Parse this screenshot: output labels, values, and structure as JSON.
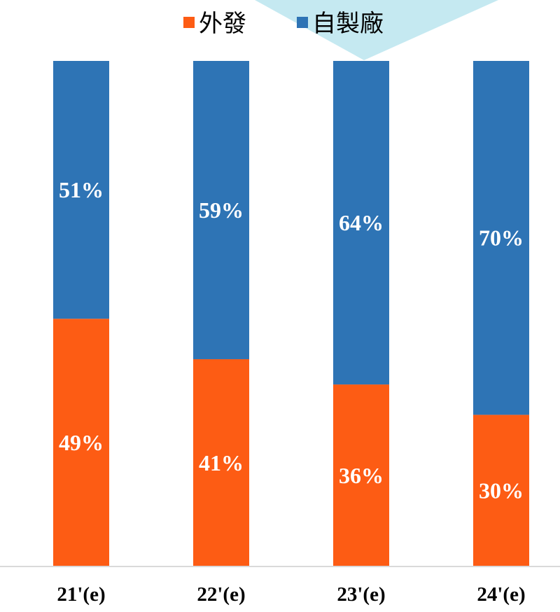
{
  "chart_data": {
    "type": "bar",
    "stacked": true,
    "percent_stacked": true,
    "categories": [
      "21'(e)",
      "22'(e)",
      "23'(e)",
      "24'(e)"
    ],
    "series": [
      {
        "name": "外發",
        "values": [
          49,
          41,
          36,
          30
        ],
        "labels": [
          "49%",
          "41%",
          "36%",
          "30%"
        ],
        "color": "#FD5C14"
      },
      {
        "name": "自製廠",
        "values": [
          51,
          59,
          64,
          70
        ],
        "labels": [
          "51%",
          "59%",
          "64%",
          "70%"
        ],
        "color": "#2E74B5"
      }
    ],
    "ylim": [
      0,
      100
    ],
    "grid": false,
    "legend_position": "top-center",
    "title": "",
    "xlabel": "",
    "ylabel": ""
  },
  "colors": {
    "callout_fill": "#C5E9F1",
    "axis_line": "#D9D9D9"
  }
}
